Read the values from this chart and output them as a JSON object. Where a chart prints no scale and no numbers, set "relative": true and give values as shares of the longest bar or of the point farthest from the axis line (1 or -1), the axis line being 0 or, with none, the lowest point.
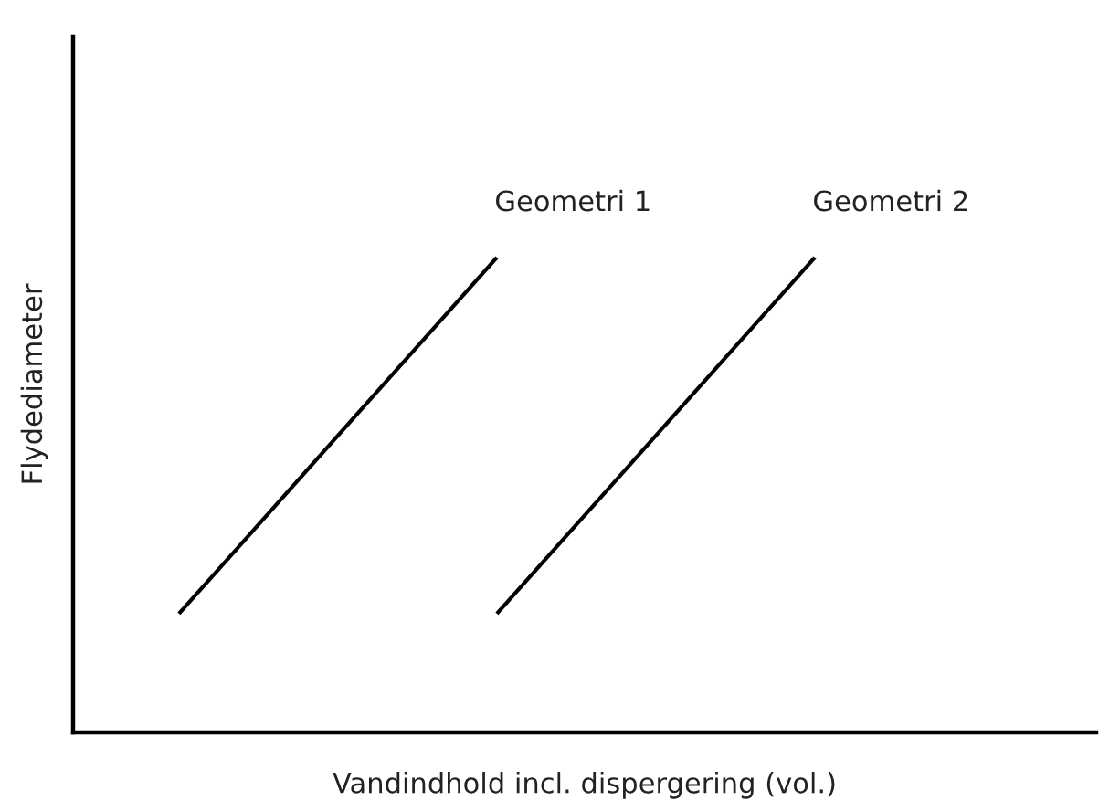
{
  "chart_data": {
    "type": "line",
    "relative": true,
    "xlabel": "Vandindhold incl. dispergering (vol.)",
    "ylabel": "Flydediameter",
    "categories": [
      null,
      null,
      null
    ],
    "series": [
      {
        "name": "Geometri 1",
        "color": "#000000",
        "values": [
          0.25,
          1,
          null
        ]
      },
      {
        "name": "Geometri 2",
        "color": "#000000",
        "values": [
          null,
          0.25,
          1
        ]
      }
    ],
    "legend": false,
    "grid": false,
    "marker": "none",
    "line_style": "solid"
  }
}
